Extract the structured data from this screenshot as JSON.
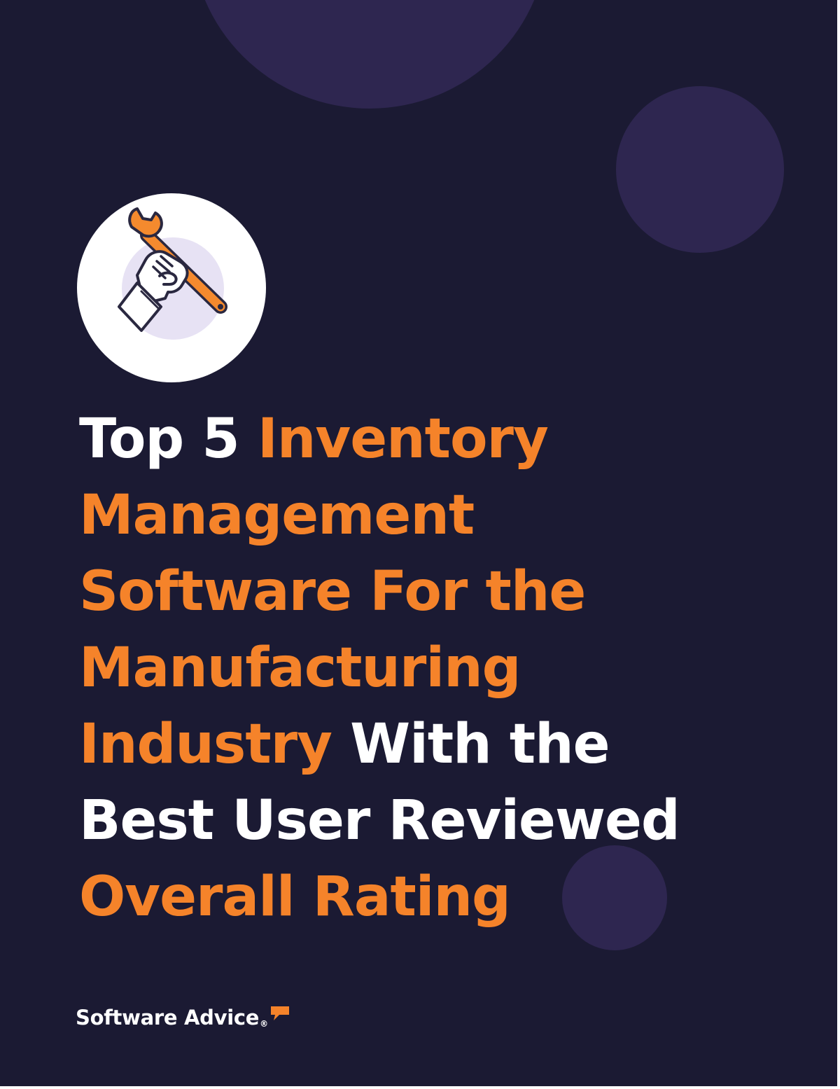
{
  "headline": {
    "line1": {
      "white": "Top 5 ",
      "orange": "Inventory"
    },
    "line2": {
      "orange": "Management"
    },
    "line3": {
      "orange": "Software For the"
    },
    "line4": {
      "orange": "Manufacturing"
    },
    "line5": {
      "orange": "Industry",
      "white": " With the"
    },
    "line6": {
      "white": "Best User Reviewed"
    },
    "line7": {
      "orange": "Overall Rating"
    }
  },
  "brand": {
    "name": "Software Advice",
    "registered": "®"
  },
  "icons": {
    "hero": "hand-wrench-icon",
    "brand_mark": "speech-bubble-icon"
  },
  "colors": {
    "background": "#1b1a33",
    "accent": "#f5832a",
    "decor_circle": "#2e2650",
    "text": "#ffffff"
  }
}
